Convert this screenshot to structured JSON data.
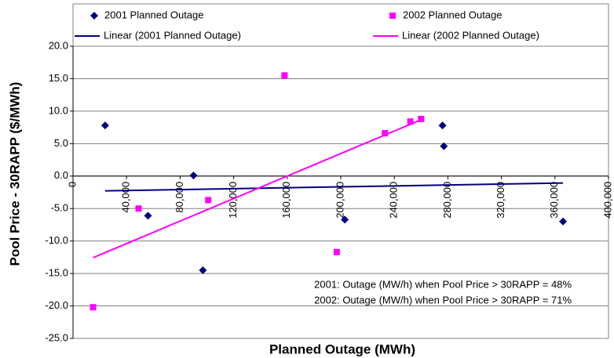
{
  "chart_data": {
    "type": "scatter",
    "xlabel": "Planned Outage (MWh)",
    "ylabel": "Pool Price - 30RAPP ($/MWh)",
    "xlim": [
      0,
      400000
    ],
    "xticks": [
      {
        "value": 0,
        "label": "0"
      },
      {
        "value": 40000,
        "label": "40,000"
      },
      {
        "value": 80000,
        "label": "80,000"
      },
      {
        "value": 120000,
        "label": "120,000"
      },
      {
        "value": 160000,
        "label": "160,000"
      },
      {
        "value": 200000,
        "label": "200,000"
      },
      {
        "value": 240000,
        "label": "240,000"
      },
      {
        "value": 280000,
        "label": "280,000"
      },
      {
        "value": 320000,
        "label": "320,000"
      },
      {
        "value": 360000,
        "label": "360,000"
      },
      {
        "value": 400000,
        "label": "400,000"
      }
    ],
    "ylim": [
      -25,
      20
    ],
    "yticks": [
      {
        "value": -25,
        "label": "-25.0"
      },
      {
        "value": -20,
        "label": "-20.0"
      },
      {
        "value": -15,
        "label": "-15.0"
      },
      {
        "value": -10,
        "label": "-10.0"
      },
      {
        "value": -5,
        "label": "-5.0"
      },
      {
        "value": 0,
        "label": "0.0"
      },
      {
        "value": 5,
        "label": "5.0"
      },
      {
        "value": 10,
        "label": "10.0"
      },
      {
        "value": 15,
        "label": "15.0"
      },
      {
        "value": 20,
        "label": "20.0"
      }
    ],
    "grid": true,
    "series": [
      {
        "name": "2001 Planned Outage",
        "trend_name": "Linear (2001 Planned Outage)",
        "color": "#000080",
        "trend_color": "#000080",
        "marker": "diamond",
        "x": [
          24000,
          56000,
          90000,
          97000,
          203000,
          276000,
          277000,
          366000
        ],
        "values": [
          7.8,
          -6.1,
          0.1,
          -14.5,
          -6.7,
          7.8,
          4.6,
          -7.0
        ]
      },
      {
        "name": "2002 Planned Outage",
        "trend_name": "Linear (2002 Planned Outage)",
        "color": "#ff00ff",
        "trend_color": "#ff00ff",
        "marker": "square",
        "x": [
          15000,
          49000,
          101000,
          158000,
          197000,
          233000,
          252000,
          260000
        ],
        "values": [
          -20.2,
          -5.0,
          -3.7,
          15.5,
          -11.7,
          6.6,
          8.4,
          8.8
        ]
      }
    ],
    "annotations": [
      "2001: Outage (MW/h) when Pool Price > 30RAPP = 48%",
      "2002: Outage (MW/h) when Pool Price > 30RAPP = 71%"
    ]
  }
}
